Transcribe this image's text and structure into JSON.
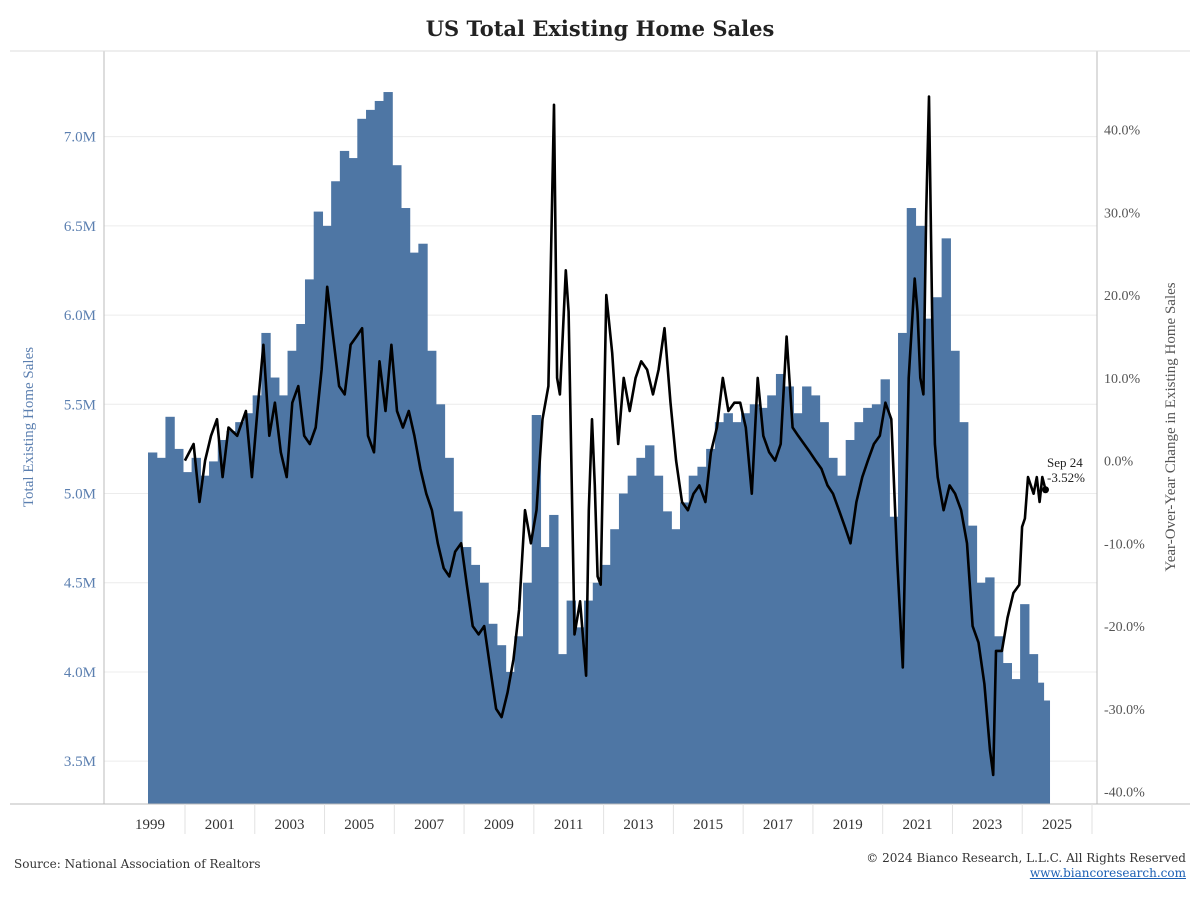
{
  "title": "US Total Existing Home Sales",
  "footer": {
    "source": "Source: National Association of Realtors",
    "copyright": "© 2024 Bianco Research, L.L.C. All Rights Reserved",
    "website": "www.biancoresearch.com"
  },
  "colors": {
    "bars": "#4e76a4",
    "line": "#000000",
    "left_axis_text": "#5b7fb0",
    "right_axis_text": "#555555",
    "frame": "#bbbbbb"
  },
  "chart_data": {
    "type": "bar+line",
    "x_ticks": [
      "1999",
      "2001",
      "2003",
      "2005",
      "2007",
      "2009",
      "2011",
      "2013",
      "2015",
      "2017",
      "2019",
      "2021",
      "2023",
      "2025"
    ],
    "left_axis": {
      "label": "Total Existing Home Sales",
      "ticks": [
        3.5,
        4.0,
        4.5,
        5.0,
        5.5,
        6.0,
        6.5,
        7.0
      ],
      "tick_labels": [
        "3.5M",
        "4.0M",
        "4.5M",
        "5.0M",
        "5.5M",
        "6.0M",
        "6.5M",
        "7.0M"
      ],
      "range": [
        3.26,
        7.48
      ]
    },
    "right_axis": {
      "label": "Year-Over-Year Change in Existing Home Sales",
      "ticks": [
        -40,
        -30,
        -20,
        -10,
        0,
        10,
        20,
        30,
        40
      ],
      "tick_labels": [
        "-40.0%",
        "-30.0%",
        "-20.0%",
        "-10.0%",
        "0.0%",
        "10.0%",
        "20.0%",
        "30.0%",
        "40.0%"
      ],
      "range": [
        -41.5,
        49.5
      ]
    },
    "series": [
      {
        "name": "Total Existing Home Sales",
        "kind": "bar",
        "axis": "left",
        "points": [
          [
            1999.0,
            5.23
          ],
          [
            1999.25,
            5.2
          ],
          [
            1999.5,
            5.43
          ],
          [
            1999.75,
            5.25
          ],
          [
            2000.0,
            5.12
          ],
          [
            2000.25,
            5.2
          ],
          [
            2000.5,
            5.1
          ],
          [
            2000.75,
            5.18
          ],
          [
            2001.0,
            5.3
          ],
          [
            2001.25,
            5.35
          ],
          [
            2001.5,
            5.4
          ],
          [
            2001.75,
            5.45
          ],
          [
            2002.0,
            5.55
          ],
          [
            2002.25,
            5.9
          ],
          [
            2002.5,
            5.65
          ],
          [
            2002.75,
            5.55
          ],
          [
            2003.0,
            5.8
          ],
          [
            2003.25,
            5.95
          ],
          [
            2003.5,
            6.2
          ],
          [
            2003.75,
            6.58
          ],
          [
            2004.0,
            6.5
          ],
          [
            2004.25,
            6.75
          ],
          [
            2004.5,
            6.92
          ],
          [
            2004.75,
            6.88
          ],
          [
            2005.0,
            7.1
          ],
          [
            2005.25,
            7.15
          ],
          [
            2005.5,
            7.2
          ],
          [
            2005.75,
            7.25
          ],
          [
            2006.0,
            6.84
          ],
          [
            2006.25,
            6.6
          ],
          [
            2006.5,
            6.35
          ],
          [
            2006.75,
            6.4
          ],
          [
            2007.0,
            5.8
          ],
          [
            2007.25,
            5.5
          ],
          [
            2007.5,
            5.2
          ],
          [
            2007.75,
            4.9
          ],
          [
            2008.0,
            4.7
          ],
          [
            2008.25,
            4.6
          ],
          [
            2008.5,
            4.5
          ],
          [
            2008.75,
            4.27
          ],
          [
            2009.0,
            4.15
          ],
          [
            2009.25,
            4.0
          ],
          [
            2009.5,
            4.2
          ],
          [
            2009.75,
            4.5
          ],
          [
            2010.0,
            5.44
          ],
          [
            2010.25,
            4.7
          ],
          [
            2010.5,
            4.88
          ],
          [
            2010.75,
            4.1
          ],
          [
            2011.0,
            4.4
          ],
          [
            2011.25,
            4.25
          ],
          [
            2011.5,
            4.4
          ],
          [
            2011.75,
            4.5
          ],
          [
            2012.0,
            4.6
          ],
          [
            2012.25,
            4.8
          ],
          [
            2012.5,
            5.0
          ],
          [
            2012.75,
            5.1
          ],
          [
            2013.0,
            5.2
          ],
          [
            2013.25,
            5.27
          ],
          [
            2013.5,
            5.1
          ],
          [
            2013.75,
            4.9
          ],
          [
            2014.0,
            4.8
          ],
          [
            2014.25,
            4.95
          ],
          [
            2014.5,
            5.1
          ],
          [
            2014.75,
            5.15
          ],
          [
            2015.0,
            5.25
          ],
          [
            2015.25,
            5.4
          ],
          [
            2015.5,
            5.45
          ],
          [
            2015.75,
            5.4
          ],
          [
            2016.0,
            5.45
          ],
          [
            2016.25,
            5.5
          ],
          [
            2016.5,
            5.48
          ],
          [
            2016.75,
            5.55
          ],
          [
            2017.0,
            5.67
          ],
          [
            2017.25,
            5.6
          ],
          [
            2017.5,
            5.45
          ],
          [
            2017.75,
            5.6
          ],
          [
            2018.0,
            5.55
          ],
          [
            2018.25,
            5.4
          ],
          [
            2018.5,
            5.2
          ],
          [
            2018.75,
            5.1
          ],
          [
            2019.0,
            5.3
          ],
          [
            2019.25,
            5.4
          ],
          [
            2019.5,
            5.48
          ],
          [
            2019.75,
            5.5
          ],
          [
            2020.0,
            5.64
          ],
          [
            2020.25,
            4.87
          ],
          [
            2020.5,
            5.9
          ],
          [
            2020.75,
            6.6
          ],
          [
            2021.0,
            6.5
          ],
          [
            2021.25,
            5.98
          ],
          [
            2021.5,
            6.1
          ],
          [
            2021.75,
            6.43
          ],
          [
            2022.0,
            5.8
          ],
          [
            2022.25,
            5.4
          ],
          [
            2022.5,
            4.82
          ],
          [
            2022.75,
            4.5
          ],
          [
            2023.0,
            4.53
          ],
          [
            2023.25,
            4.2
          ],
          [
            2023.5,
            4.05
          ],
          [
            2023.75,
            3.96
          ],
          [
            2024.0,
            4.38
          ],
          [
            2024.25,
            4.1
          ],
          [
            2024.5,
            3.94
          ],
          [
            2024.67,
            3.84
          ]
        ]
      },
      {
        "name": "Year-Over-Year Change in Existing Home Sales",
        "kind": "line",
        "axis": "right",
        "points": [
          [
            2000.0,
            0.0
          ],
          [
            2000.25,
            2.0
          ],
          [
            2000.42,
            -5.0
          ],
          [
            2000.58,
            0.0
          ],
          [
            2000.75,
            3.0
          ],
          [
            2000.92,
            5.0
          ],
          [
            2001.08,
            -2.0
          ],
          [
            2001.25,
            4.0
          ],
          [
            2001.5,
            3.0
          ],
          [
            2001.75,
            6.0
          ],
          [
            2001.92,
            -2.0
          ],
          [
            2002.08,
            6.0
          ],
          [
            2002.25,
            14.0
          ],
          [
            2002.42,
            3.0
          ],
          [
            2002.58,
            7.0
          ],
          [
            2002.75,
            1.0
          ],
          [
            2002.92,
            -2.0
          ],
          [
            2003.08,
            7.0
          ],
          [
            2003.25,
            9.0
          ],
          [
            2003.42,
            3.0
          ],
          [
            2003.58,
            2.0
          ],
          [
            2003.75,
            4.0
          ],
          [
            2003.92,
            11.0
          ],
          [
            2004.08,
            21.0
          ],
          [
            2004.25,
            15.0
          ],
          [
            2004.42,
            9.0
          ],
          [
            2004.58,
            8.0
          ],
          [
            2004.75,
            14.0
          ],
          [
            2004.92,
            15.0
          ],
          [
            2005.08,
            16.0
          ],
          [
            2005.25,
            3.0
          ],
          [
            2005.42,
            1.0
          ],
          [
            2005.58,
            12.0
          ],
          [
            2005.75,
            6.0
          ],
          [
            2005.92,
            14.0
          ],
          [
            2006.08,
            6.0
          ],
          [
            2006.25,
            4.0
          ],
          [
            2006.42,
            6.0
          ],
          [
            2006.58,
            3.0
          ],
          [
            2006.75,
            -1.0
          ],
          [
            2006.92,
            -4.0
          ],
          [
            2007.08,
            -6.0
          ],
          [
            2007.25,
            -10.0
          ],
          [
            2007.42,
            -13.0
          ],
          [
            2007.58,
            -14.0
          ],
          [
            2007.75,
            -11.0
          ],
          [
            2007.92,
            -10.0
          ],
          [
            2008.08,
            -15.0
          ],
          [
            2008.25,
            -20.0
          ],
          [
            2008.42,
            -21.0
          ],
          [
            2008.58,
            -20.0
          ],
          [
            2008.75,
            -25.0
          ],
          [
            2008.92,
            -30.0
          ],
          [
            2009.08,
            -31.0
          ],
          [
            2009.25,
            -28.0
          ],
          [
            2009.42,
            -24.0
          ],
          [
            2009.58,
            -18.0
          ],
          [
            2009.75,
            -6.0
          ],
          [
            2009.92,
            -10.0
          ],
          [
            2010.08,
            -6.0
          ],
          [
            2010.25,
            5.0
          ],
          [
            2010.42,
            9.0
          ],
          [
            2010.58,
            43.0
          ],
          [
            2010.67,
            10.0
          ],
          [
            2010.75,
            8.0
          ],
          [
            2010.83,
            15.0
          ],
          [
            2010.92,
            23.0
          ],
          [
            2011.0,
            18.0
          ],
          [
            2011.17,
            -21.0
          ],
          [
            2011.33,
            -17.0
          ],
          [
            2011.5,
            -26.0
          ],
          [
            2011.58,
            -6.0
          ],
          [
            2011.67,
            5.0
          ],
          [
            2011.75,
            -3.0
          ],
          [
            2011.83,
            -14.0
          ],
          [
            2011.92,
            -15.0
          ],
          [
            2012.08,
            20.0
          ],
          [
            2012.25,
            13.0
          ],
          [
            2012.42,
            2.0
          ],
          [
            2012.58,
            10.0
          ],
          [
            2012.75,
            6.0
          ],
          [
            2012.92,
            10.0
          ],
          [
            2013.08,
            12.0
          ],
          [
            2013.25,
            11.0
          ],
          [
            2013.42,
            8.0
          ],
          [
            2013.58,
            11.0
          ],
          [
            2013.75,
            16.0
          ],
          [
            2013.92,
            7.0
          ],
          [
            2014.08,
            0.0
          ],
          [
            2014.25,
            -5.0
          ],
          [
            2014.42,
            -6.0
          ],
          [
            2014.58,
            -4.0
          ],
          [
            2014.75,
            -3.0
          ],
          [
            2014.92,
            -5.0
          ],
          [
            2015.08,
            1.0
          ],
          [
            2015.25,
            4.0
          ],
          [
            2015.42,
            10.0
          ],
          [
            2015.58,
            6.0
          ],
          [
            2015.75,
            7.0
          ],
          [
            2015.92,
            7.0
          ],
          [
            2016.08,
            4.0
          ],
          [
            2016.25,
            -4.0
          ],
          [
            2016.42,
            10.0
          ],
          [
            2016.58,
            3.0
          ],
          [
            2016.75,
            1.0
          ],
          [
            2016.92,
            0.0
          ],
          [
            2017.08,
            2.0
          ],
          [
            2017.25,
            15.0
          ],
          [
            2017.42,
            4.0
          ],
          [
            2017.58,
            3.0
          ],
          [
            2017.75,
            2.0
          ],
          [
            2017.92,
            1.0
          ],
          [
            2018.08,
            0.0
          ],
          [
            2018.25,
            -1.0
          ],
          [
            2018.42,
            -3.0
          ],
          [
            2018.58,
            -4.0
          ],
          [
            2018.75,
            -6.0
          ],
          [
            2018.92,
            -8.0
          ],
          [
            2019.08,
            -10.0
          ],
          [
            2019.25,
            -5.0
          ],
          [
            2019.42,
            -2.0
          ],
          [
            2019.58,
            0.0
          ],
          [
            2019.75,
            2.0
          ],
          [
            2019.92,
            3.0
          ],
          [
            2020.08,
            7.0
          ],
          [
            2020.25,
            5.0
          ],
          [
            2020.42,
            -12.0
          ],
          [
            2020.58,
            -25.0
          ],
          [
            2020.75,
            10.0
          ],
          [
            2020.92,
            22.0
          ],
          [
            2021.0,
            18.0
          ],
          [
            2021.08,
            10.0
          ],
          [
            2021.17,
            8.0
          ],
          [
            2021.25,
            30.0
          ],
          [
            2021.33,
            44.0
          ],
          [
            2021.42,
            18.0
          ],
          [
            2021.5,
            2.0
          ],
          [
            2021.58,
            -2.0
          ],
          [
            2021.75,
            -6.0
          ],
          [
            2021.92,
            -3.0
          ],
          [
            2022.08,
            -4.0
          ],
          [
            2022.25,
            -6.0
          ],
          [
            2022.42,
            -10.0
          ],
          [
            2022.58,
            -20.0
          ],
          [
            2022.75,
            -22.0
          ],
          [
            2022.92,
            -27.0
          ],
          [
            2023.08,
            -35.0
          ],
          [
            2023.17,
            -38.0
          ],
          [
            2023.25,
            -23.0
          ],
          [
            2023.42,
            -23.0
          ],
          [
            2023.58,
            -19.0
          ],
          [
            2023.75,
            -16.0
          ],
          [
            2023.92,
            -15.0
          ],
          [
            2024.0,
            -8.0
          ],
          [
            2024.08,
            -7.0
          ],
          [
            2024.17,
            -2.0
          ],
          [
            2024.25,
            -3.0
          ],
          [
            2024.33,
            -4.0
          ],
          [
            2024.42,
            -2.0
          ],
          [
            2024.5,
            -5.0
          ],
          [
            2024.58,
            -2.0
          ],
          [
            2024.67,
            -3.52
          ]
        ]
      }
    ],
    "annotation": {
      "label_date": "Sep 24",
      "label_value": "-3.52%",
      "x": 2024.67,
      "y": -3.52
    }
  }
}
